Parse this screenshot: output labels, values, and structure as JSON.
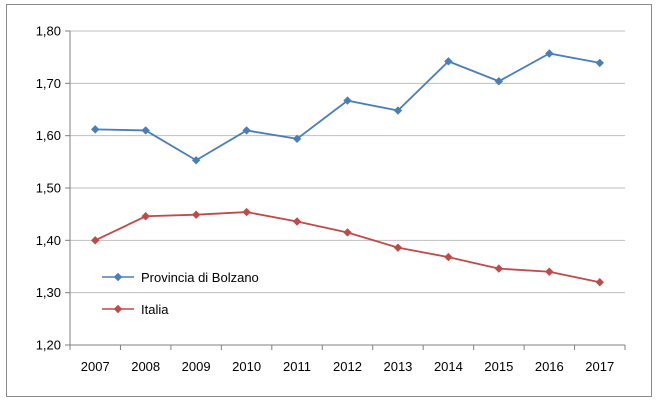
{
  "chart_data": {
    "type": "line",
    "categories": [
      "2007",
      "2008",
      "2009",
      "2010",
      "2011",
      "2012",
      "2013",
      "2014",
      "2015",
      "2016",
      "2017"
    ],
    "series": [
      {
        "name": "Provincia di Bolzano",
        "color": "#4a7ebb",
        "values": [
          1.612,
          1.61,
          1.553,
          1.61,
          1.594,
          1.667,
          1.648,
          1.742,
          1.704,
          1.757,
          1.739
        ]
      },
      {
        "name": "Italia",
        "color": "#be4b48",
        "values": [
          1.4,
          1.446,
          1.449,
          1.454,
          1.436,
          1.415,
          1.386,
          1.368,
          1.346,
          1.34,
          1.32
        ]
      }
    ],
    "ylim": [
      1.2,
      1.8
    ],
    "yticks": [
      "1,20",
      "1,30",
      "1,40",
      "1,50",
      "1,60",
      "1,70",
      "1,80"
    ],
    "grid": true,
    "legend": "bottom-left"
  }
}
